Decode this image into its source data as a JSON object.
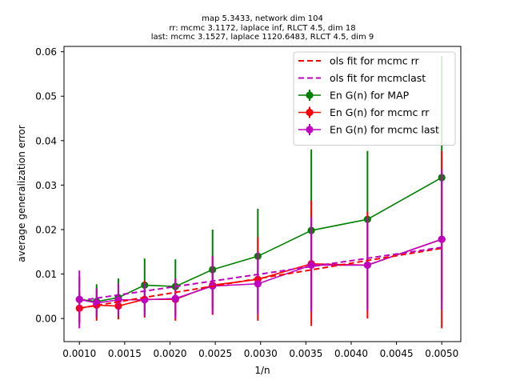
{
  "chart_data": {
    "type": "line",
    "title_lines": [
      "map 5.3433, network dim 104",
      "rr: mcmc 3.1172, laplace inf, RLCT 4.5, dim 18",
      "last: mcmc 3.1527, laplace 1120.6483, RLCT 4.5, dim 9"
    ],
    "xlabel": "1/n",
    "ylabel": "average generalization error",
    "xlim": [
      0.00083,
      0.00521
    ],
    "ylim": [
      -0.0052,
      0.0612
    ],
    "x_ticks": [
      0.001,
      0.0015,
      0.002,
      0.0025,
      0.003,
      0.0035,
      0.004,
      0.0045,
      0.005
    ],
    "x_tick_labels": [
      "0.0010",
      "0.0015",
      "0.0020",
      "0.0025",
      "0.0030",
      "0.0035",
      "0.0040",
      "0.0045",
      "0.0050"
    ],
    "y_ticks": [
      0.0,
      0.01,
      0.02,
      0.03,
      0.04,
      0.05,
      0.06
    ],
    "y_tick_labels": [
      "0.00",
      "0.01",
      "0.02",
      "0.03",
      "0.04",
      "0.05",
      "0.06"
    ],
    "grid": false,
    "legend_position": "top-right",
    "x": [
      0.001,
      0.00119,
      0.00143,
      0.00172,
      0.00206,
      0.00247,
      0.00297,
      0.00356,
      0.00418,
      0.005
    ],
    "series": [
      {
        "name": "En G(n) for MAP",
        "color": "#008000",
        "style": "solid",
        "marker": "circle",
        "values": [
          0.0043,
          0.0038,
          0.0047,
          0.0075,
          0.0072,
          0.011,
          0.014,
          0.0198,
          0.0223,
          0.0317
        ],
        "err_low": [
          -0.0008,
          0.0001,
          0.0002,
          0.0015,
          0.0005,
          0.0022,
          0.002,
          0.0018,
          0.0022,
          0.004
        ],
        "err_high": [
          0.0094,
          0.0077,
          0.009,
          0.0135,
          0.0133,
          0.02,
          0.0247,
          0.038,
          0.0377,
          0.059
        ]
      },
      {
        "name": "En G(n) for mcmc rr",
        "color": "#ff0000",
        "style": "solid",
        "marker": "circle",
        "values": [
          0.0023,
          0.003,
          0.0028,
          0.0043,
          0.0043,
          0.0075,
          0.0088,
          0.0123,
          0.012,
          0.0178
        ],
        "err_low": [
          -0.0012,
          -0.0005,
          -0.0002,
          0.0002,
          -0.0005,
          0.0008,
          -0.0005,
          -0.0017,
          0.0,
          -0.0022
        ],
        "err_high": [
          0.006,
          0.0065,
          0.006,
          0.0085,
          0.009,
          0.014,
          0.0183,
          0.0265,
          0.024,
          0.0377
        ]
      },
      {
        "name": "En G(n) for mcmc last",
        "color": "#bf00bf",
        "style": "solid",
        "marker": "circle",
        "values": [
          0.0043,
          0.0035,
          0.0042,
          0.0042,
          0.0045,
          0.0073,
          0.0078,
          0.012,
          0.012,
          0.0178
        ],
        "err_low": [
          -0.0022,
          0.0003,
          0.0005,
          0.0005,
          0.0,
          0.001,
          0.001,
          0.0015,
          0.0018,
          0.002
        ],
        "err_high": [
          0.0108,
          0.0068,
          0.0078,
          0.008,
          0.009,
          0.014,
          0.015,
          0.0228,
          0.0228,
          0.0335
        ]
      },
      {
        "name": "ols fit for mcmc rr",
        "color": "#ff0000",
        "style": "dashed",
        "x_range": [
          0.001,
          0.005
        ],
        "y_range": [
          0.0023,
          0.0158
        ]
      },
      {
        "name": "ols fit for mcmclast",
        "color": "#bf00bf",
        "style": "dashed",
        "x_range": [
          0.001,
          0.005
        ],
        "y_range": [
          0.004,
          0.016
        ]
      }
    ],
    "legend": [
      {
        "name": "ols fit for mcmc rr",
        "color": "#ff0000",
        "style": "dashed"
      },
      {
        "name": "ols fit for mcmclast",
        "color": "#bf00bf",
        "style": "dashed"
      },
      {
        "name": "En G(n) for MAP",
        "color": "#008000",
        "style": "marker"
      },
      {
        "name": "En G(n) for mcmc rr",
        "color": "#ff0000",
        "style": "marker"
      },
      {
        "name": "En G(n) for mcmc last",
        "color": "#bf00bf",
        "style": "marker"
      }
    ]
  }
}
